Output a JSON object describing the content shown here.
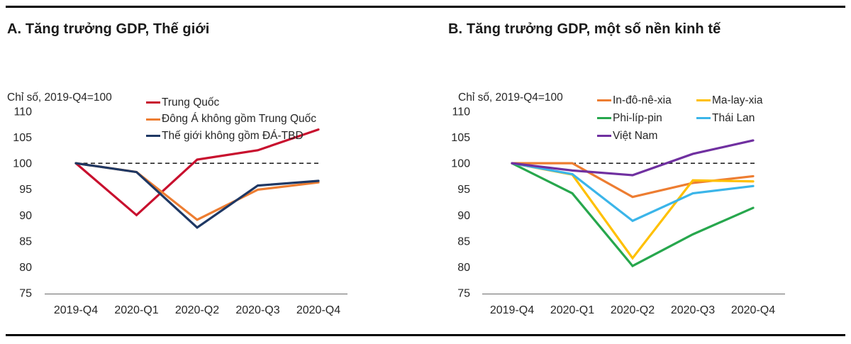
{
  "chart_data": [
    {
      "type": "line",
      "title": "A. Tăng trưởng GDP, Thế giới",
      "unit_label": "Chỉ số, 2019-Q4=100",
      "x_labels": [
        "2019-Q4",
        "2020-Q1",
        "2020-Q2",
        "2020-Q3",
        "2020-Q4"
      ],
      "ylim": [
        75,
        110
      ],
      "ytick_step": 5,
      "reference_line": 100,
      "grid": false,
      "legend_position": "top-right-inside",
      "legend_columns": 1,
      "axis_color": "#7f7f7f",
      "reference_line_color": "#000000",
      "series": [
        {
          "name": "Trung Quốc",
          "color": "#C8102E",
          "values": [
            100,
            90,
            100.7,
            102.5,
            106.5
          ]
        },
        {
          "name": "Đông Á không gồm Trung Quốc",
          "color": "#ED7D31",
          "values": [
            100,
            98.3,
            89.1,
            94.9,
            96.3
          ]
        },
        {
          "name": "Thế giới không gồm ĐÁ-TBD",
          "color": "#1F3864",
          "values": [
            100,
            98.3,
            87.6,
            95.7,
            96.6
          ]
        }
      ]
    },
    {
      "type": "line",
      "title": "B. Tăng trưởng GDP, một số nền kinh tế",
      "unit_label": "Chỉ số, 2019-Q4=100",
      "x_labels": [
        "2019-Q4",
        "2020-Q1",
        "2020-Q2",
        "2020-Q3",
        "2020-Q4"
      ],
      "ylim": [
        75,
        110
      ],
      "ytick_step": 5,
      "reference_line": 100,
      "grid": false,
      "legend_position": "top-right-inside",
      "legend_columns": 2,
      "axis_color": "#7f7f7f",
      "reference_line_color": "#000000",
      "series": [
        {
          "name": "In-đô-nê-xia",
          "color": "#ED7D31",
          "values": [
            100,
            100,
            93.5,
            96.2,
            97.5
          ]
        },
        {
          "name": "Ma-lay-xia",
          "color": "#FFC000",
          "values": [
            100,
            97.8,
            81.7,
            96.7,
            96.5
          ]
        },
        {
          "name": "Phi-líp-pin",
          "color": "#27A74D",
          "values": [
            100,
            94.2,
            80.2,
            86.3,
            91.4
          ]
        },
        {
          "name": "Thái Lan",
          "color": "#3BB5E9",
          "values": [
            100,
            97.9,
            88.9,
            94.2,
            95.6
          ]
        },
        {
          "name": "Việt Nam",
          "color": "#7030A0",
          "values": [
            100,
            98.6,
            97.7,
            101.8,
            104.4
          ]
        }
      ]
    }
  ]
}
